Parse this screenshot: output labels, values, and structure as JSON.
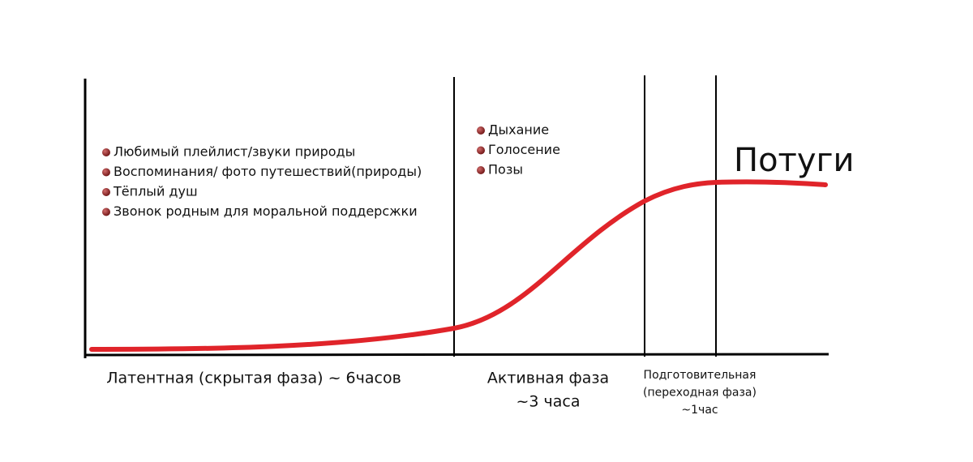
{
  "phases": [
    {
      "label_lines": [
        "Латентная (скрытая фаза) ~ 6часов"
      ],
      "items": [
        "Любимый плейлист/звуки природы",
        "Воспоминания/ фото путешествий(природы)",
        "Тёплый душ",
        "Звонок родным для моральной поддерсжки"
      ]
    },
    {
      "label_lines": [
        "Активная фаза",
        "~3 часа"
      ],
      "items": [
        "Дыхание",
        "Голосение",
        "Позы"
      ]
    },
    {
      "label_lines": [
        "Подготовительная",
        "(переходная фаза)",
        "~1час"
      ]
    }
  ],
  "pushing_label": "Потуги"
}
